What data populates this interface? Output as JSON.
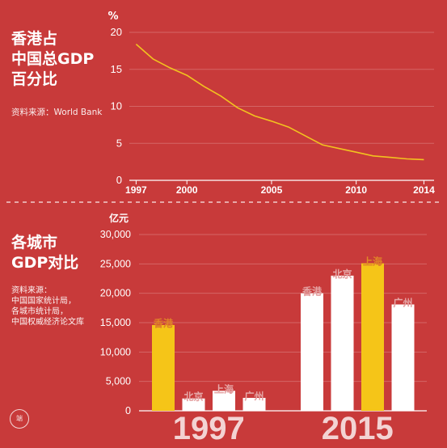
{
  "top": {
    "title_lines": [
      "香港占",
      "中国总GDP",
      "百分比"
    ],
    "source": "资料来源：World Bank"
  },
  "bottom": {
    "title_lines": [
      "各城市",
      "GDP对比"
    ],
    "source_lines": [
      "资料来源：",
      "中国国家统计局，",
      "各城市统计局，",
      "中国权威经济论文库"
    ]
  },
  "logo_text": "端",
  "colors": {
    "background": "#c83a3a",
    "line": "#f2c21f",
    "highlight": "#f5c518",
    "bar": "#ffffff"
  },
  "chart_data": [
    {
      "type": "line",
      "title": "",
      "ylabel": "%",
      "ylim": [
        0,
        20
      ],
      "yticks": [
        0,
        5,
        10,
        15,
        20
      ],
      "xlim": [
        1996.6,
        2014.6
      ],
      "xticks": [
        1997,
        2000,
        2005,
        2010,
        2014
      ],
      "x": [
        1997,
        1998,
        1999,
        2000,
        2001,
        2002,
        2003,
        2004,
        2005,
        2006,
        2007,
        2008,
        2009,
        2010,
        2011,
        2012,
        2013,
        2014
      ],
      "y": [
        18.4,
        16.4,
        15.2,
        14.2,
        12.7,
        11.4,
        9.8,
        8.7,
        8.0,
        7.2,
        6.0,
        4.8,
        4.3,
        3.8,
        3.3,
        3.1,
        2.9,
        2.8
      ],
      "grid": true
    },
    {
      "type": "bar",
      "ylabel": "亿元",
      "ylim": [
        0,
        30000
      ],
      "yticks": [
        "0",
        "5,000",
        "10,000",
        "15,000",
        "20,000",
        "25,000",
        "30,000"
      ],
      "groups": [
        {
          "label": "1997",
          "bars": [
            {
              "name": "香港",
              "value": 14600,
              "highlight": true
            },
            {
              "name": "北京",
              "value": 2100,
              "highlight": false
            },
            {
              "name": "上海",
              "value": 3400,
              "highlight": false
            },
            {
              "name": "广州",
              "value": 2200,
              "highlight": false
            }
          ]
        },
        {
          "label": "2015",
          "bars": [
            {
              "name": "香港",
              "value": 20000,
              "highlight": false
            },
            {
              "name": "北京",
              "value": 23000,
              "highlight": false
            },
            {
              "name": "上海",
              "value": 25100,
              "highlight": true
            },
            {
              "name": "广州",
              "value": 18100,
              "highlight": false
            }
          ]
        }
      ],
      "grid": true
    }
  ]
}
